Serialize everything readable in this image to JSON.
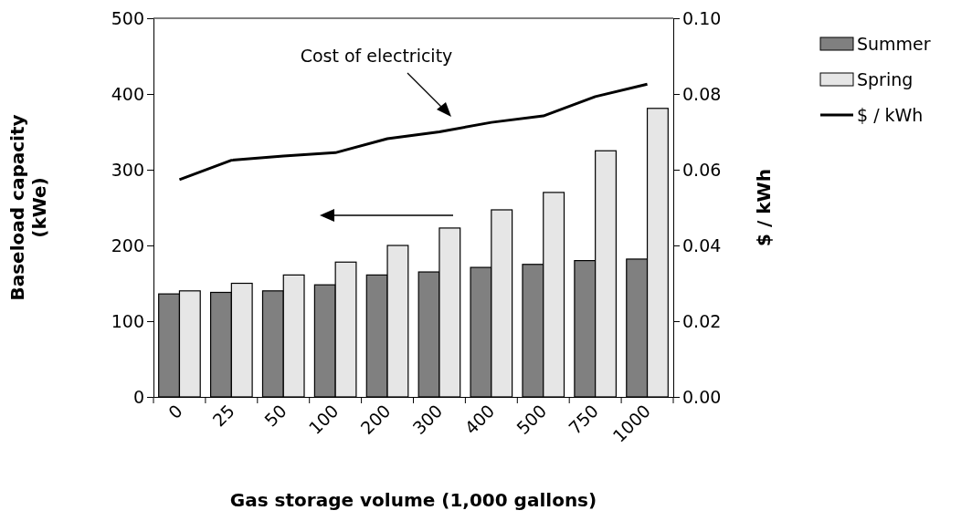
{
  "chart_data": {
    "type": "bar",
    "categories": [
      "0",
      "25",
      "50",
      "100",
      "200",
      "300",
      "400",
      "500",
      "750",
      "1000"
    ],
    "xlabel": "Gas storage volume (1,000 gallons)",
    "ylabel": "Baseload capacity\n(kWe)",
    "y2label": "$ / kWh",
    "ylim": [
      0,
      500
    ],
    "yticks": [
      0,
      100,
      200,
      300,
      400,
      500
    ],
    "y2lim": [
      0,
      0.1
    ],
    "y2ticks": [
      {
        "value": 0,
        "label": "0.00"
      },
      {
        "value": 0.02,
        "label": "0.02"
      },
      {
        "value": 0.04,
        "label": "0.04"
      },
      {
        "value": 0.06,
        "label": "0.06"
      },
      {
        "value": 0.08,
        "label": "0.08"
      },
      {
        "value": 0.1,
        "label": "0.10"
      }
    ],
    "series": [
      {
        "name": "Summer",
        "color": "#808080",
        "values": [
          136,
          138,
          140,
          148,
          161,
          165,
          171,
          175,
          180,
          182
        ]
      },
      {
        "name": "Spring",
        "color": "#e6e6e6",
        "values": [
          140,
          150,
          161,
          178,
          200,
          223,
          247,
          270,
          325,
          381
        ]
      },
      {
        "name": "$ / kWh",
        "type": "line",
        "axis": "y2",
        "color": "#000000",
        "values": [
          0.0574,
          0.0625,
          0.0636,
          0.0645,
          0.0682,
          0.07,
          0.0725,
          0.0742,
          0.0793,
          0.0826
        ]
      }
    ],
    "annotations": [
      "Cost of electricity"
    ],
    "legend": "right",
    "grid": false,
    "marker": "none"
  }
}
